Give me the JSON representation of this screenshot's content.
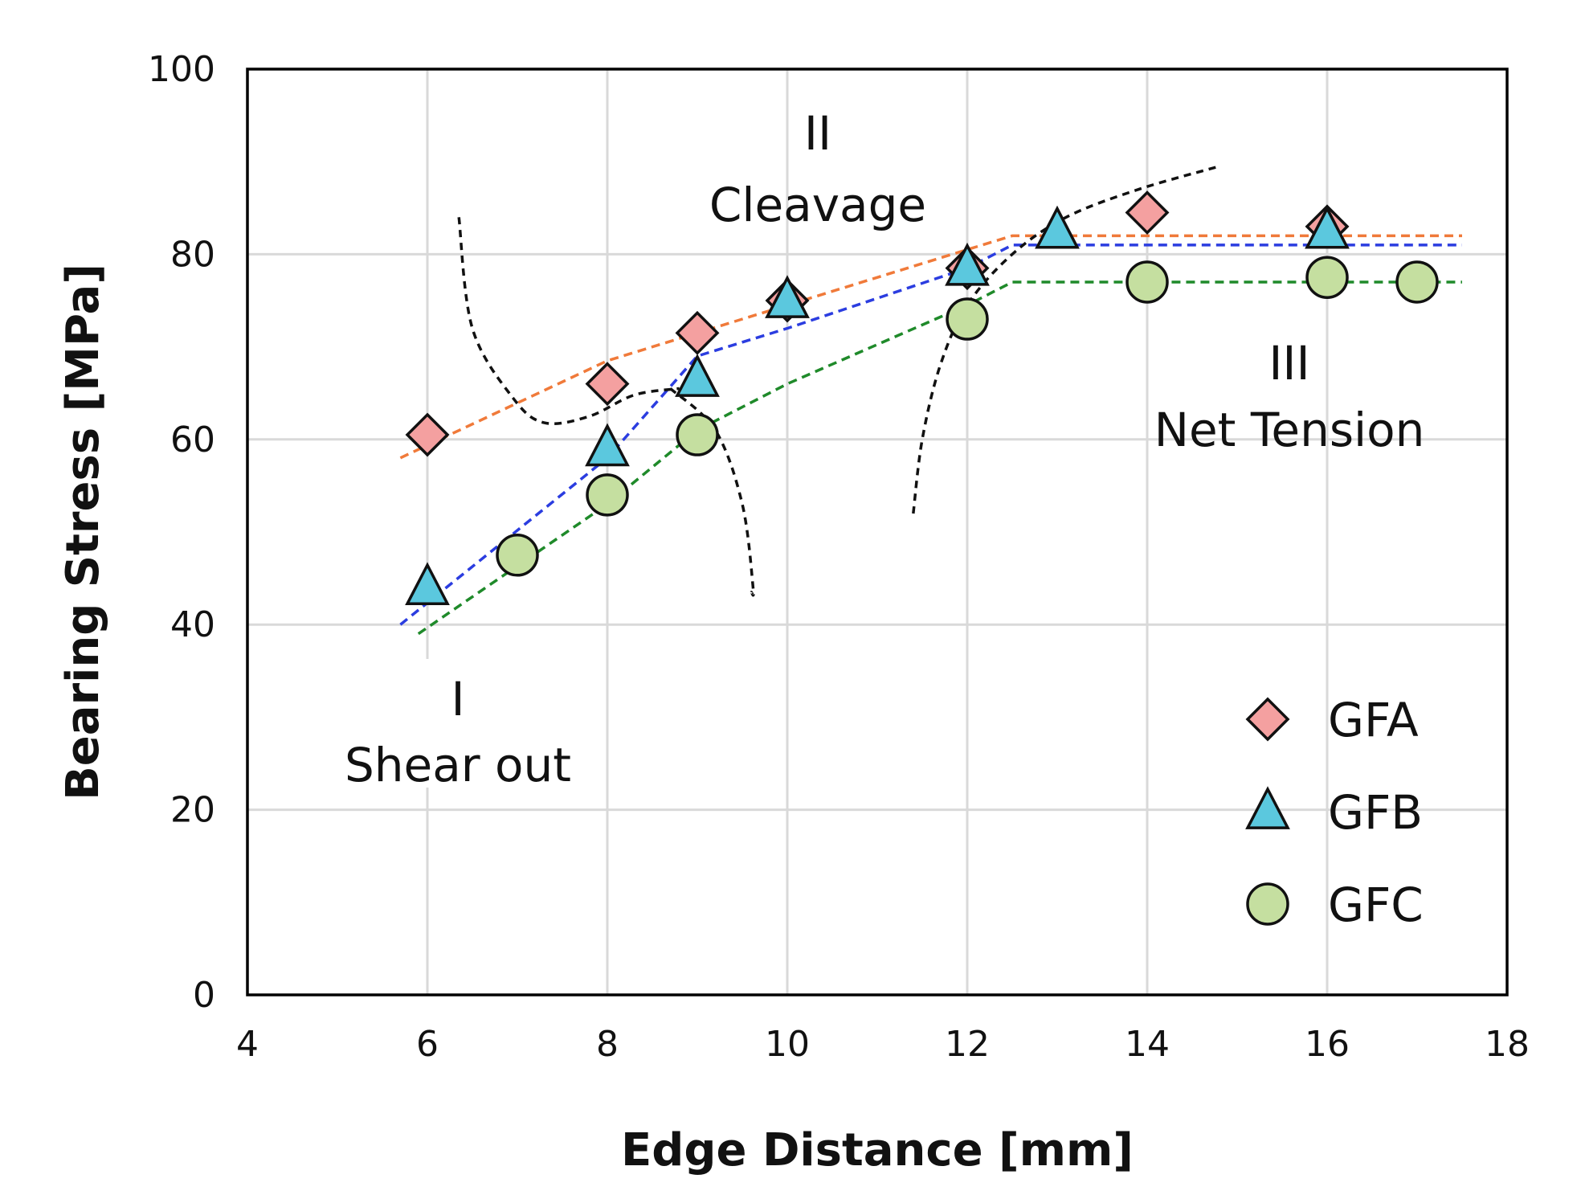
{
  "chart_data": {
    "type": "scatter",
    "title": "",
    "xlabel": "Edge Distance [mm]",
    "ylabel": "Bearing Stress [MPa]",
    "xlim": [
      4,
      18
    ],
    "ylim": [
      0,
      100
    ],
    "xticks": [
      4,
      6,
      8,
      10,
      12,
      14,
      16,
      18
    ],
    "yticks": [
      0,
      20,
      40,
      60,
      80,
      100
    ],
    "grid": true,
    "legend_position": "bottom-right",
    "series": [
      {
        "name": "GFA",
        "marker": "diamond",
        "color": "#f4a0a0",
        "points": [
          [
            6,
            60.5
          ],
          [
            8,
            66
          ],
          [
            9,
            71.5
          ],
          [
            10,
            75
          ],
          [
            12,
            78.5
          ],
          [
            14,
            84.5
          ],
          [
            16,
            83
          ]
        ],
        "trend_color": "#f07a3a",
        "trend": [
          [
            5.7,
            58
          ],
          [
            8,
            68.5
          ],
          [
            10,
            74.5
          ],
          [
            12,
            80.5
          ],
          [
            12.5,
            82
          ],
          [
            17.5,
            82
          ]
        ]
      },
      {
        "name": "GFB",
        "marker": "triangle",
        "color": "#5bc8de",
        "points": [
          [
            6,
            44
          ],
          [
            8,
            59
          ],
          [
            9,
            66.5
          ],
          [
            10,
            75
          ],
          [
            12,
            78.5
          ],
          [
            13,
            82.5
          ],
          [
            16,
            82.5
          ]
        ],
        "trend_color": "#2b3de0",
        "trend": [
          [
            5.7,
            40
          ],
          [
            8,
            58
          ],
          [
            9,
            69
          ],
          [
            10,
            72
          ],
          [
            12,
            78.5
          ],
          [
            12.5,
            81
          ],
          [
            17.5,
            81
          ]
        ]
      },
      {
        "name": "GFC",
        "marker": "circle",
        "color": "#c5dfa0",
        "points": [
          [
            7,
            47.5
          ],
          [
            8,
            54
          ],
          [
            9,
            60.5
          ],
          [
            12,
            73
          ],
          [
            14,
            77
          ],
          [
            16,
            77.5
          ],
          [
            17,
            77
          ]
        ],
        "trend_color": "#1f8a2a",
        "trend": [
          [
            5.9,
            39
          ],
          [
            8,
            53
          ],
          [
            9,
            61
          ],
          [
            10,
            66
          ],
          [
            12,
            74.5
          ],
          [
            12.5,
            77
          ],
          [
            17.5,
            77
          ]
        ]
      }
    ],
    "boundary_curves": [
      [
        [
          6.35,
          84
        ],
        [
          6.5,
          72
        ],
        [
          6.95,
          64.5
        ],
        [
          7.3,
          61.8
        ],
        [
          7.8,
          62.5
        ],
        [
          8.3,
          64.8
        ],
        [
          8.8,
          65.5
        ]
      ],
      [
        [
          8.7,
          65.5
        ],
        [
          9.2,
          61
        ],
        [
          9.5,
          53
        ],
        [
          9.62,
          44
        ],
        [
          9.6,
          43.5
        ]
      ],
      [
        [
          11.4,
          52
        ],
        [
          11.5,
          60
        ],
        [
          11.7,
          68
        ],
        [
          12.0,
          74.5
        ],
        [
          12.5,
          80
        ],
        [
          13.1,
          84
        ],
        [
          13.9,
          87
        ],
        [
          14.8,
          89.5
        ]
      ]
    ],
    "annotations": [
      {
        "numeral": "I",
        "label": "Shear out"
      },
      {
        "numeral": "II",
        "label": "Cleavage"
      },
      {
        "numeral": "III",
        "label": "Net Tension"
      }
    ]
  }
}
